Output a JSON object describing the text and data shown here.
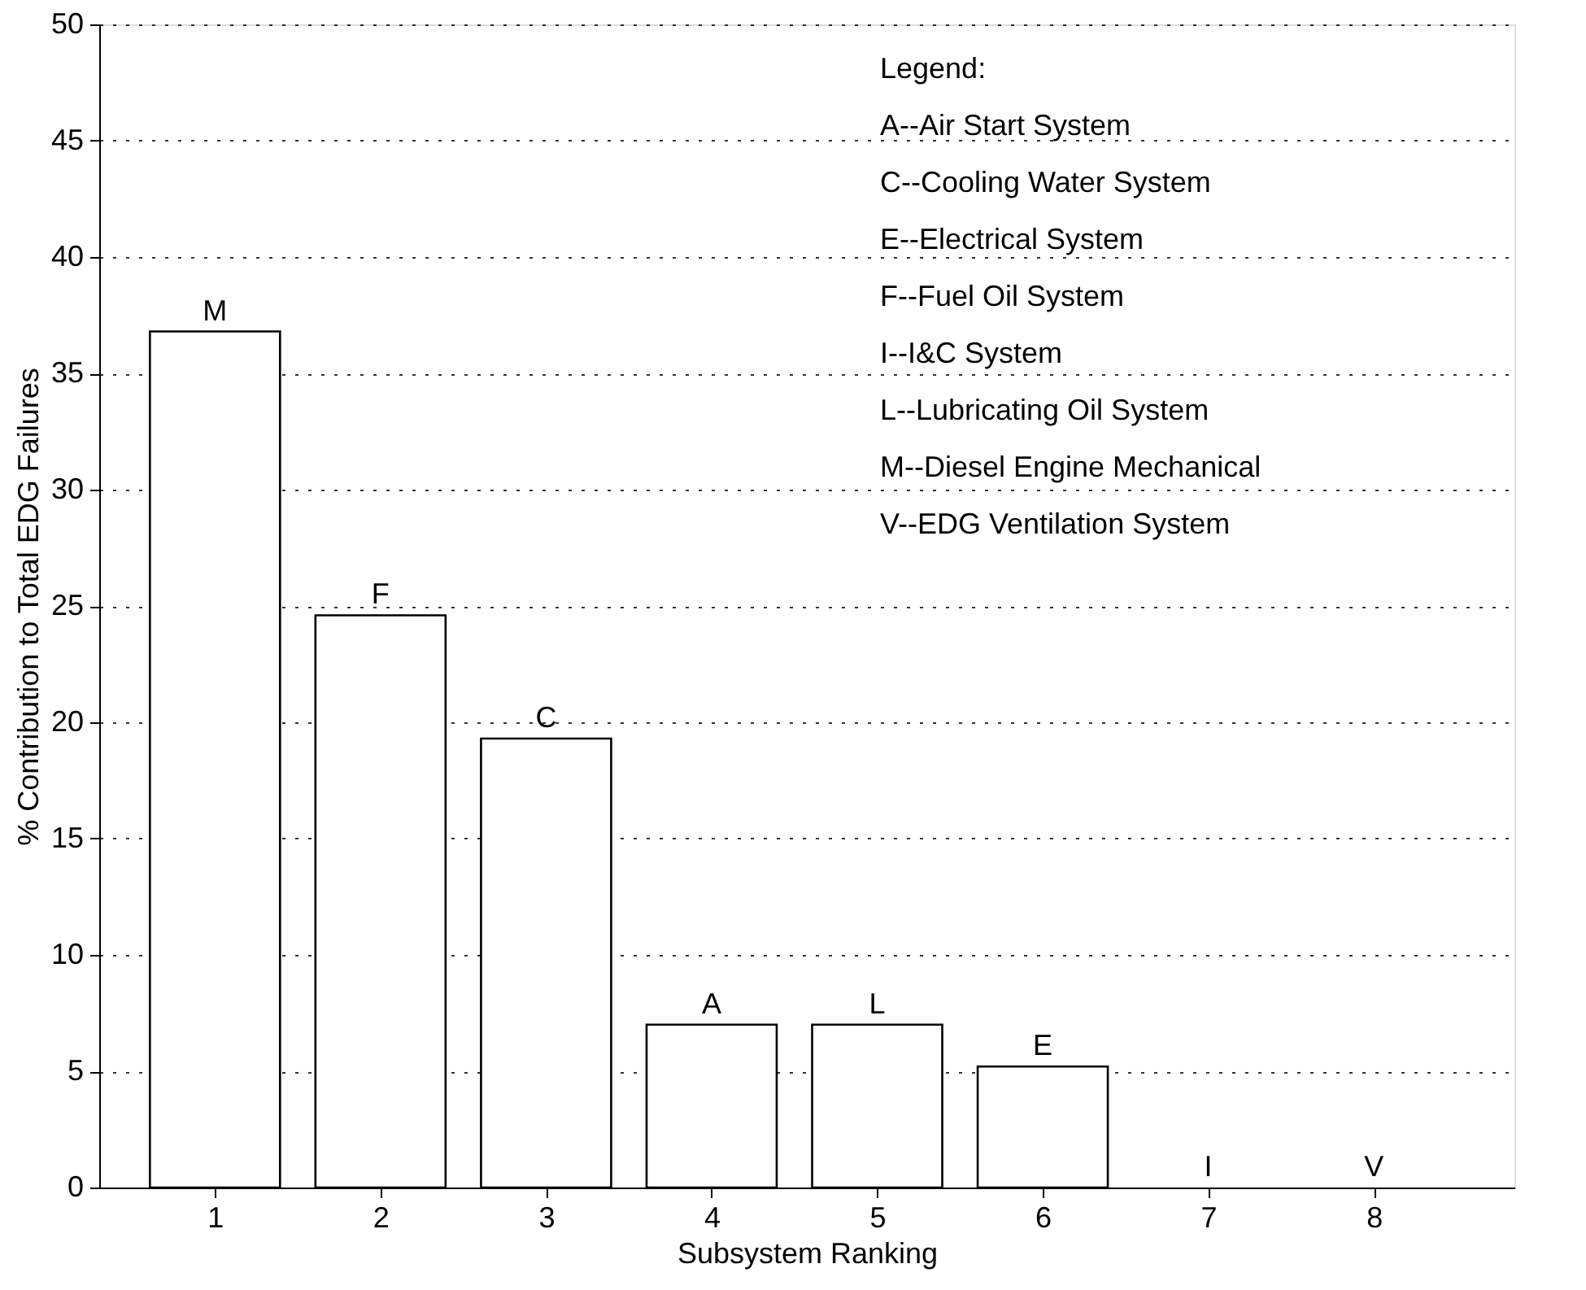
{
  "chart_data": {
    "type": "bar",
    "xlabel": "Subsystem Ranking",
    "ylabel": "% Contribution to Total EDG Failures",
    "categories": [
      "1",
      "2",
      "3",
      "4",
      "5",
      "6",
      "7",
      "8"
    ],
    "values": [
      36.8,
      24.6,
      19.3,
      7.0,
      7.0,
      5.2,
      0,
      0
    ],
    "value_labels": [
      "M",
      "F",
      "C",
      "A",
      "L",
      "E",
      "I",
      "V"
    ],
    "color": "#ffffff",
    "ylim": [
      0,
      50
    ],
    "yticks": [
      0,
      5,
      10,
      15,
      20,
      25,
      30,
      35,
      40,
      45,
      50
    ],
    "grid": "y",
    "annotations": [
      "Legend:",
      "A--Air Start System",
      "C--Cooling Water System",
      "E--Electrical System",
      "F--Fuel Oil System",
      "I--I&C System",
      "L--Lubricating Oil System",
      "M--Diesel Engine Mechanical",
      "V--EDG Ventilation System"
    ]
  }
}
